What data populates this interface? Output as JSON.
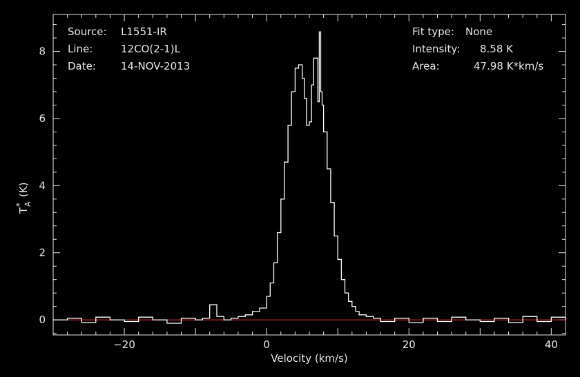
{
  "header": {
    "source_label": "Source:",
    "source_value": "L1551-IR",
    "line_label": "Line:",
    "line_value": "12CO(2-1)L",
    "date_label": "Date:",
    "date_value": "14-NOV-2013",
    "fit_label": "Fit type:",
    "fit_value": "None",
    "intensity_label": "Intensity:",
    "intensity_value": "8.58 K",
    "area_label": "Area:",
    "area_value": "47.98 K*km/s"
  },
  "colors": {
    "background": "#000000",
    "axes": "#e8e8e8",
    "spectrum": "#ffffff",
    "baseline": "#e03030"
  },
  "chart_data": {
    "type": "line",
    "xlabel": "Velocity (km/s)",
    "ylabel_main": "T",
    "ylabel_sup": "*",
    "ylabel_sub": "A",
    "ylabel_unit": "(K)",
    "xlim": [
      -30,
      42
    ],
    "ylim": [
      -0.45,
      9.1
    ],
    "xticks": [
      -20,
      0,
      20,
      40
    ],
    "yticks": [
      0,
      2,
      4,
      6,
      8
    ],
    "baseline_y": 0,
    "series": [
      {
        "x": [
          -30,
          -28,
          -26,
          -24,
          -22,
          -20,
          -18,
          -16,
          -14,
          -12,
          -10,
          -9,
          -8,
          -7,
          -6,
          -5,
          -4,
          -3,
          -2,
          -1,
          0,
          0.5,
          1,
          1.5,
          2,
          2.5,
          3,
          3.5,
          4,
          4.5,
          5,
          5.3,
          5.6,
          6,
          6.3,
          6.6,
          7,
          7.2,
          7.4,
          7.6,
          7.8,
          8,
          8.5,
          9,
          9.5,
          10,
          10.5,
          11,
          11.5,
          12,
          12.5,
          13,
          14,
          15,
          16,
          18,
          20,
          22,
          24,
          26,
          28,
          30,
          32,
          34,
          36,
          38,
          40,
          42
        ],
        "y": [
          0,
          0.05,
          -0.08,
          0.08,
          0,
          -0.05,
          0.08,
          0,
          -0.1,
          0.05,
          0,
          0.05,
          0.45,
          0.1,
          0,
          0.05,
          0.1,
          0.15,
          0.25,
          0.35,
          0.7,
          1.1,
          1.7,
          2.6,
          3.6,
          4.7,
          5.8,
          6.8,
          7.5,
          7.6,
          7.2,
          6.6,
          5.8,
          5.9,
          7.0,
          7.8,
          7.8,
          6.5,
          8.58,
          6.8,
          6.4,
          5.6,
          4.5,
          3.5,
          2.5,
          1.8,
          1.2,
          0.8,
          0.55,
          0.4,
          0.25,
          0.15,
          0.1,
          0.05,
          -0.05,
          0.05,
          -0.08,
          0.05,
          -0.05,
          0.08,
          0,
          -0.05,
          0.05,
          -0.08,
          0.1,
          -0.05,
          0.08,
          0
        ]
      }
    ]
  }
}
